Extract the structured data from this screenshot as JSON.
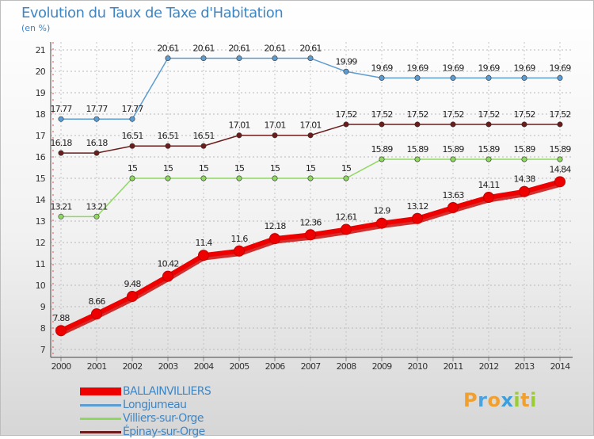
{
  "header": {
    "title": "Evolution du Taux de Taxe d'Habitation",
    "unit": "(en %)"
  },
  "chart_data": {
    "type": "line",
    "x": [
      "2000",
      "2001",
      "2002",
      "2003",
      "2004",
      "2005",
      "2006",
      "2007",
      "2008",
      "2009",
      "2010",
      "2011",
      "2012",
      "2013",
      "2014"
    ],
    "ylim": [
      7,
      21
    ],
    "yticks": [
      7,
      8,
      9,
      10,
      11,
      12,
      13,
      14,
      15,
      16,
      17,
      18,
      19,
      20,
      21
    ],
    "grid": true,
    "series": [
      {
        "name": "BALLAINVILLIERS",
        "color": "#ee0000",
        "values": [
          7.88,
          8.66,
          9.48,
          10.42,
          11.4,
          11.6,
          12.18,
          12.36,
          12.61,
          12.9,
          13.12,
          13.63,
          14.11,
          14.38,
          14.84
        ],
        "labels": [
          "7.88",
          "8.66",
          "9.48",
          "10.42",
          "11.4",
          "11.6",
          "12.18",
          "12.36",
          "12.61",
          "12.9",
          "13.12",
          "13.63",
          "14.11",
          "14.38",
          "14.84"
        ]
      },
      {
        "name": "Longjumeau",
        "color": "#5d9cd1",
        "values": [
          17.77,
          17.77,
          17.77,
          20.61,
          20.61,
          20.61,
          20.61,
          20.61,
          19.99,
          19.69,
          19.69,
          19.69,
          19.69,
          19.69,
          19.69
        ],
        "labels": [
          "17.77",
          "17.77",
          "17.77",
          "20.61",
          "20.61",
          "20.61",
          "20.61",
          "20.61",
          "19.99",
          "19.69",
          "19.69",
          "19.69",
          "19.69",
          "19.69",
          "19.69"
        ]
      },
      {
        "name": "Villiers-sur-Orge",
        "color": "#8fd860",
        "values": [
          13.21,
          13.21,
          15,
          15,
          15,
          15,
          15,
          15,
          15,
          15.89,
          15.89,
          15.89,
          15.89,
          15.89,
          15.89
        ],
        "labels": [
          "13.21",
          "13.21",
          "15",
          "15",
          "15",
          "15",
          "15",
          "15",
          "15",
          "15.89",
          "15.89",
          "15.89",
          "15.89",
          "15.89",
          "15.89"
        ]
      },
      {
        "name": "Épinay-sur-Orge",
        "color": "#6b1c1c",
        "values": [
          16.18,
          16.18,
          16.51,
          16.51,
          16.51,
          17.01,
          17.01,
          17.01,
          17.52,
          17.52,
          17.52,
          17.52,
          17.52,
          17.52,
          17.52
        ],
        "labels": [
          "16.18",
          "16.18",
          "16.51",
          "16.51",
          "16.51",
          "17.01",
          "17.01",
          "17.01",
          "17.52",
          "17.52",
          "17.52",
          "17.52",
          "17.52",
          "17.52",
          "17.52"
        ]
      }
    ]
  },
  "logo": {
    "letters": [
      "P",
      "r",
      "o",
      "x",
      "i",
      "t",
      "i"
    ],
    "colors": [
      "#f0a030",
      "#4aa3df",
      "#f0a030",
      "#3aa0dd",
      "#9acd32",
      "#f0a030",
      "#9acd32"
    ]
  }
}
